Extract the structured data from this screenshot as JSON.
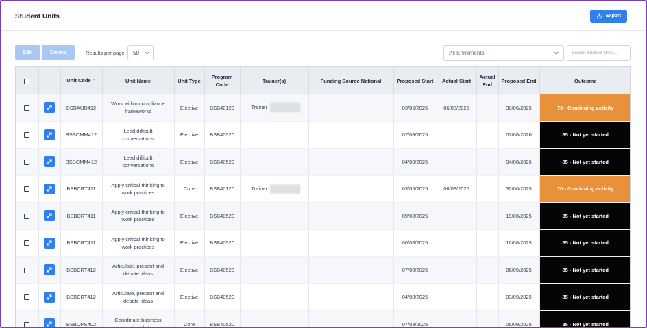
{
  "header": {
    "title": "Student Units",
    "export_label": "Export"
  },
  "toolbar": {
    "edit_label": "Edit",
    "delete_label": "Delete",
    "results_per_page_label": "Results per page",
    "results_per_page_value": "50",
    "enrolment_filter_value": "All Enrolments",
    "search_placeholder": "Search Student Units..."
  },
  "table": {
    "columns": {
      "unit_code": "Unit Code",
      "unit_name": "Unit Name",
      "unit_type": "Unit Type",
      "program_code_1": "Program",
      "program_code_2": "Code",
      "trainers": "Trainer(s)",
      "funding": "Funding Source National",
      "proposed_start": "Proposed Start",
      "actual_start": "Actual Start",
      "actual_end_1": "Actual",
      "actual_end_2": "End",
      "proposed_end": "Proposed End",
      "outcome": "Outcome"
    },
    "rows": [
      {
        "unit_code": "BSBAUD412",
        "name_1": "Work within compliance",
        "name_2": "frameworks",
        "unit_type": "Elective",
        "program_code": "BSB40120",
        "trainer": "Trainer",
        "proposed_start": "03/05/2025",
        "actual_start": "06/08/2025",
        "actual_end": "",
        "proposed_end": "30/06/2025",
        "outcome": "70 - Continuing activity",
        "outcome_color": "orange"
      },
      {
        "unit_code": "BSBCMM412",
        "name_1": "Lead difficult",
        "name_2": "conversations",
        "unit_type": "Elective",
        "program_code": "BSB40520",
        "trainer": "",
        "proposed_start": "07/08/2025",
        "actual_start": "",
        "actual_end": "",
        "proposed_end": "07/08/2026",
        "outcome": "85 - Not yet started",
        "outcome_color": "black"
      },
      {
        "unit_code": "BSBCMM412",
        "name_1": "Lead difficult",
        "name_2": "conversations",
        "unit_type": "Elective",
        "program_code": "BSB40520",
        "trainer": "",
        "proposed_start": "04/08/2025",
        "actual_start": "",
        "actual_end": "",
        "proposed_end": "04/08/2026",
        "outcome": "85 - Not yet started",
        "outcome_color": "black"
      },
      {
        "unit_code": "BSBCRT411",
        "name_1": "Apply critical thinking to",
        "name_2": "work practices",
        "unit_type": "Core",
        "program_code": "BSB40120",
        "trainer": "Trainer",
        "proposed_start": "03/05/2025",
        "actual_start": "06/08/2025",
        "actual_end": "",
        "proposed_end": "30/06/2025",
        "outcome": "70 - Continuing activity",
        "outcome_color": "orange"
      },
      {
        "unit_code": "BSBCRT411",
        "name_1": "Apply critical thinking to",
        "name_2": "work practices",
        "unit_type": "Elective",
        "program_code": "BSB40520",
        "trainer": "",
        "proposed_start": "09/08/2025",
        "actual_start": "",
        "actual_end": "",
        "proposed_end": "19/08/2025",
        "outcome": "85 - Not yet started",
        "outcome_color": "black"
      },
      {
        "unit_code": "BSBCRT411",
        "name_1": "Apply critical thinking to",
        "name_2": "work practices",
        "unit_type": "Elective",
        "program_code": "BSB40520",
        "trainer": "",
        "proposed_start": "06/08/2025",
        "actual_start": "",
        "actual_end": "",
        "proposed_end": "16/08/2025",
        "outcome": "85 - Not yet started",
        "outcome_color": "black"
      },
      {
        "unit_code": "BSBCRT412",
        "name_1": "Articulate, present and",
        "name_2": "debate ideas",
        "unit_type": "Elective",
        "program_code": "BSB40520",
        "trainer": "",
        "proposed_start": "07/08/2025",
        "actual_start": "",
        "actual_end": "",
        "proposed_end": "06/09/2025",
        "outcome": "85 - Not yet started",
        "outcome_color": "black"
      },
      {
        "unit_code": "BSBCRT412",
        "name_1": "Articulate, present and",
        "name_2": "debate ideas",
        "unit_type": "Elective",
        "program_code": "BSB40520",
        "trainer": "",
        "proposed_start": "04/08/2025",
        "actual_start": "",
        "actual_end": "",
        "proposed_end": "03/09/2025",
        "outcome": "85 - Not yet started",
        "outcome_color": "black"
      },
      {
        "unit_code": "BSBOPS402",
        "name_1": "Coordinate business",
        "name_2": "operational plans",
        "unit_type": "Core",
        "program_code": "BSB40520",
        "trainer": "",
        "proposed_start": "07/08/2025",
        "actual_start": "",
        "actual_end": "",
        "proposed_end": "06/09/2025",
        "outcome": "85 - Not yet started",
        "outcome_color": "black"
      }
    ]
  }
}
